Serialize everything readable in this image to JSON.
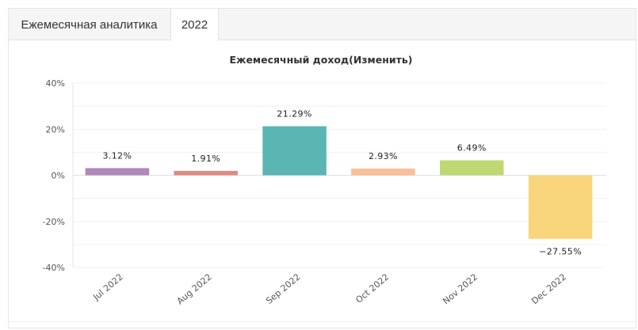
{
  "tabs": [
    {
      "label": "Ежемесячная аналитика",
      "active": false
    },
    {
      "label": "2022",
      "active": true
    }
  ],
  "chart_data": {
    "type": "bar",
    "title": "Ежемесячный доход(Изменить)",
    "xlabel": "",
    "ylabel": "",
    "categories": [
      "Jul 2022",
      "Aug 2022",
      "Sep 2022",
      "Oct 2022",
      "Nov 2022",
      "Dec 2022"
    ],
    "values": [
      3.12,
      1.91,
      21.29,
      2.93,
      6.49,
      -27.55
    ],
    "data_labels": [
      "3.12%",
      "1.91%",
      "21.29%",
      "2.93%",
      "6.49%",
      "−27.55%"
    ],
    "colors": [
      "#b088b9",
      "#e08a82",
      "#5ab5b3",
      "#fbbf99",
      "#bfd872",
      "#f8d57a"
    ],
    "ylim": [
      -40,
      40
    ],
    "yticks": [
      40,
      20,
      0,
      -20,
      -40
    ],
    "ytick_labels": [
      "40%",
      "20%",
      "0%",
      "-20%",
      "-40%"
    ],
    "grid": true,
    "legend": "none"
  }
}
